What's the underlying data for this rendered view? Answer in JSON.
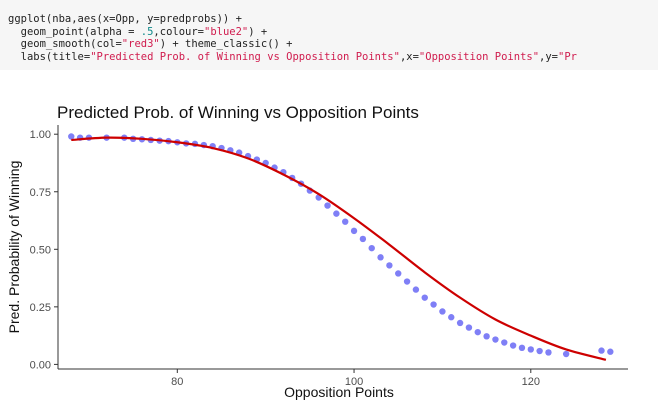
{
  "code": {
    "lines": [
      [
        {
          "t": "ggplot(nba,aes(x=Opp, y=predprobs)) +",
          "c": "plain"
        }
      ],
      [
        {
          "t": "  geom_point(alpha = ",
          "c": "plain"
        },
        {
          "t": ".5",
          "c": "num"
        },
        {
          "t": ",colour=",
          "c": "plain"
        },
        {
          "t": "\"blue2\"",
          "c": "str"
        },
        {
          "t": ") +",
          "c": "plain"
        }
      ],
      [
        {
          "t": "  geom_smooth(col=",
          "c": "plain"
        },
        {
          "t": "\"red3\"",
          "c": "str"
        },
        {
          "t": ") + theme_classic() +",
          "c": "plain"
        }
      ],
      [
        {
          "t": "  labs(title=",
          "c": "plain"
        },
        {
          "t": "\"Predicted Prob. of Winning vs Opposition Points\"",
          "c": "str"
        },
        {
          "t": ",x=",
          "c": "plain"
        },
        {
          "t": "\"Opposition Points\"",
          "c": "str"
        },
        {
          "t": ",y=",
          "c": "plain"
        },
        {
          "t": "\"Pr",
          "c": "str"
        }
      ]
    ]
  },
  "chart_data": {
    "type": "scatter",
    "title": "Predicted Prob. of Winning vs Opposition Points",
    "xlabel": "Opposition Points",
    "ylabel": "Pred. Probability of Winning",
    "xlim": [
      66.5,
      131
    ],
    "ylim": [
      -0.02,
      1.04
    ],
    "xticks": [
      80,
      100,
      120
    ],
    "yticks": [
      0.0,
      0.25,
      0.5,
      0.75,
      1.0
    ],
    "ytick_labels": [
      "0.00",
      "0.25",
      "0.50",
      "0.75",
      "1.00"
    ],
    "grid": false,
    "point_color": "#0000ee",
    "point_alpha": 0.5,
    "smooth_color": "#cd0000",
    "x": [
      68,
      69,
      70,
      72,
      74,
      75,
      76,
      77,
      78,
      79,
      80,
      81,
      82,
      83,
      84,
      85,
      86,
      87,
      88,
      89,
      90,
      91,
      92,
      93,
      94,
      95,
      96,
      97,
      98,
      99,
      100,
      101,
      102,
      103,
      104,
      105,
      106,
      107,
      108,
      109,
      110,
      111,
      112,
      113,
      114,
      115,
      116,
      117,
      118,
      119,
      120,
      121,
      122,
      124,
      128,
      129
    ],
    "y": [
      0.99,
      0.985,
      0.985,
      0.985,
      0.985,
      0.98,
      0.978,
      0.975,
      0.972,
      0.97,
      0.965,
      0.96,
      0.958,
      0.953,
      0.948,
      0.94,
      0.93,
      0.92,
      0.905,
      0.89,
      0.875,
      0.855,
      0.835,
      0.81,
      0.785,
      0.755,
      0.725,
      0.69,
      0.655,
      0.62,
      0.58,
      0.545,
      0.505,
      0.465,
      0.43,
      0.395,
      0.36,
      0.325,
      0.29,
      0.26,
      0.23,
      0.205,
      0.18,
      0.16,
      0.14,
      0.122,
      0.108,
      0.095,
      0.082,
      0.072,
      0.065,
      0.058,
      0.052,
      0.045,
      0.06,
      0.055
    ],
    "smooth": {
      "x": [
        68,
        72,
        76,
        80,
        84,
        88,
        92,
        96,
        100,
        104,
        108,
        112,
        116,
        120,
        124,
        128.5
      ],
      "y": [
        0.975,
        0.985,
        0.98,
        0.965,
        0.94,
        0.895,
        0.825,
        0.74,
        0.635,
        0.52,
        0.4,
        0.29,
        0.195,
        0.125,
        0.065,
        0.02
      ]
    }
  }
}
